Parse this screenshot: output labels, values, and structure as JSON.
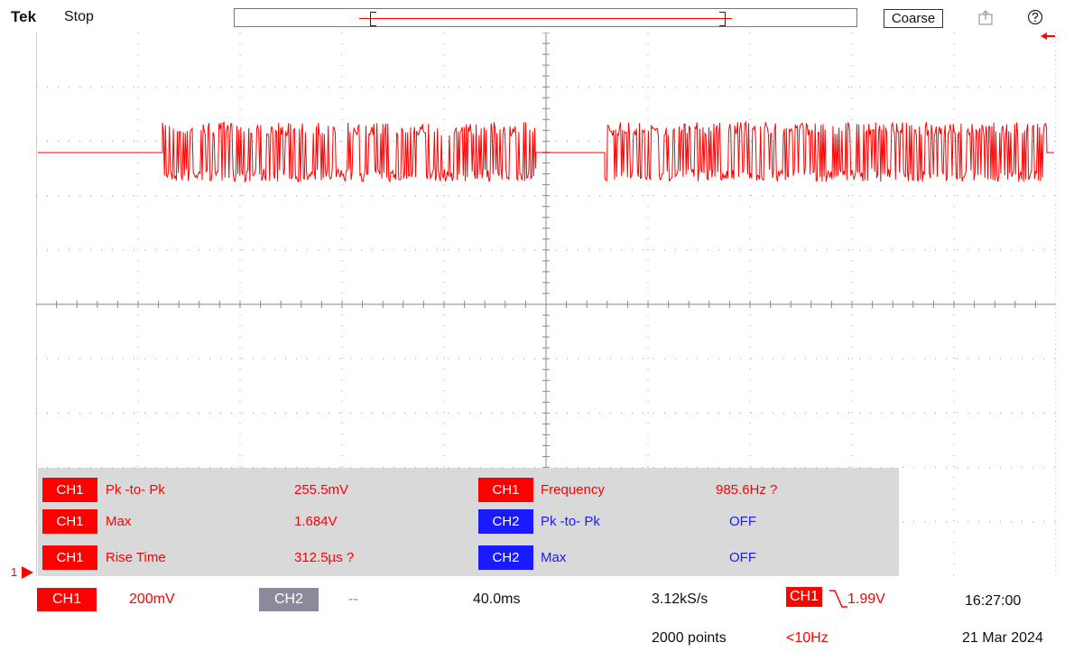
{
  "header": {
    "brand": "Tek",
    "acq_status": "Stop",
    "coarse_label": "Coarse",
    "icons": [
      "export-icon",
      "help-icon"
    ]
  },
  "colors": {
    "ch1": "#ff0000",
    "ch2": "#1a1aff",
    "ch2_off": "#8a8a9a",
    "panel": "#d9d9d9",
    "grid": "#9a9a9a"
  },
  "waveform": {
    "channel": "CH1",
    "ground_marker": "1"
  },
  "measurements": [
    {
      "channel": "CH1",
      "name": "Pk -to- Pk",
      "value": "255.5mV"
    },
    {
      "channel": "CH1",
      "name": "Max",
      "value": "1.684V"
    },
    {
      "channel": "CH1",
      "name": "Rise Time",
      "value": "312.5µs ?"
    },
    {
      "channel": "CH1",
      "name": "Frequency",
      "value": "985.6Hz ?"
    },
    {
      "channel": "CH2",
      "name": "Pk -to- Pk",
      "value": "OFF"
    },
    {
      "channel": "CH2",
      "name": "Max",
      "value": "OFF"
    }
  ],
  "bottom": {
    "ch1_label": "CH1",
    "ch1_scale": "200mV",
    "ch2_label": "CH2",
    "ch2_scale": "--",
    "timebase": "40.0ms",
    "sample_rate": "3.12kS/s",
    "record_length": "2000 points",
    "trigger_source": "CH1",
    "trigger_level": "1.99V",
    "trigger_freq": "<10Hz",
    "time": "16:27:00",
    "date": "21 Mar 2024"
  }
}
